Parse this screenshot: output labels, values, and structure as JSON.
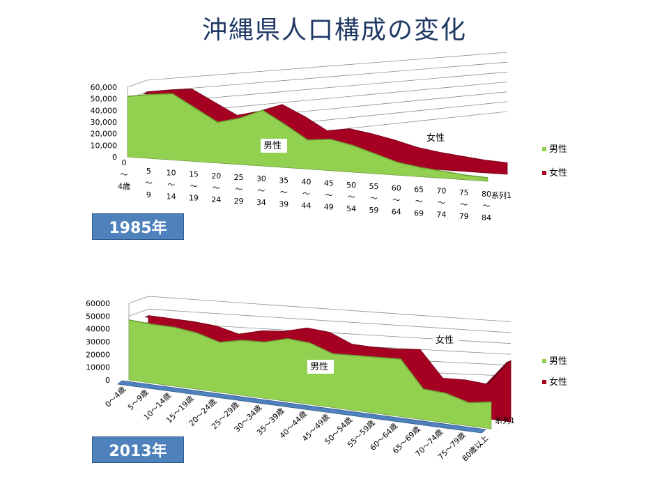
{
  "page": {
    "title": "沖縄県人口構成の変化"
  },
  "colors": {
    "male": "#92d050",
    "male_dark": "#6b9c34",
    "female": "#a50021",
    "female_dark": "#6e0015",
    "series1": "#4f81bd",
    "badge": "#4f81bd"
  },
  "chart_data": [
    {
      "type": "area",
      "year_label": "1985年",
      "ylim": [
        0,
        60000
      ],
      "yticks": [
        "0",
        "10,000",
        "20,000",
        "30,000",
        "40,000",
        "50,000",
        "60,000"
      ],
      "ytick_values": [
        0,
        10000,
        20000,
        30000,
        40000,
        50000,
        60000
      ],
      "categories": [
        [
          "0",
          "〜",
          "4歳"
        ],
        [
          "5",
          "〜",
          "9"
        ],
        [
          "10",
          "〜",
          "14"
        ],
        [
          "15",
          "〜",
          "19"
        ],
        [
          "20",
          "〜",
          "24"
        ],
        [
          "25",
          "〜",
          "29"
        ],
        [
          "30",
          "〜",
          "34"
        ],
        [
          "35",
          "〜",
          "39"
        ],
        [
          "40",
          "〜",
          "44"
        ],
        [
          "45",
          "〜",
          "49"
        ],
        [
          "50",
          "〜",
          "54"
        ],
        [
          "55",
          "〜",
          "59"
        ],
        [
          "60",
          "〜",
          "64"
        ],
        [
          "65",
          "〜",
          "69"
        ],
        [
          "70",
          "〜",
          "74"
        ],
        [
          "75",
          "〜",
          "79"
        ],
        [
          "80",
          "〜",
          "84"
        ]
      ],
      "series": [
        {
          "name": "男性",
          "values": [
            52000,
            55000,
            57000,
            46000,
            35000,
            40000,
            48000,
            37000,
            25000,
            27000,
            23000,
            17000,
            11000,
            8000,
            6000,
            4000,
            3000
          ]
        },
        {
          "name": "女性",
          "values": [
            50000,
            53000,
            55000,
            45000,
            35000,
            40000,
            47000,
            38000,
            27000,
            30000,
            27000,
            23000,
            18000,
            15000,
            13000,
            11000,
            10000
          ]
        },
        {
          "name": "系列1",
          "values": [
            0,
            0,
            0,
            0,
            0,
            0,
            0,
            0,
            0,
            0,
            0,
            0,
            0,
            0,
            0,
            0,
            0
          ]
        }
      ],
      "labels": {
        "male": "男性",
        "female": "女性",
        "series1": "系列1"
      },
      "legend": [
        "男性",
        "女性"
      ]
    },
    {
      "type": "area",
      "year_label": "2013年",
      "ylim": [
        0,
        60000
      ],
      "yticks": [
        "0",
        "10000",
        "20000",
        "30000",
        "40000",
        "50000",
        "60000"
      ],
      "ytick_values": [
        0,
        10000,
        20000,
        30000,
        40000,
        50000,
        60000
      ],
      "categories": [
        [
          "0〜4歳"
        ],
        [
          "5〜9歳"
        ],
        [
          "10〜14歳"
        ],
        [
          "15〜19歳"
        ],
        [
          "20〜24歳"
        ],
        [
          "25〜29歳"
        ],
        [
          "30〜34歳"
        ],
        [
          "35〜39歳"
        ],
        [
          "40〜44歳"
        ],
        [
          "45〜49歳"
        ],
        [
          "50〜54歳"
        ],
        [
          "55〜59歳"
        ],
        [
          "60〜64歳"
        ],
        [
          "65〜69歳"
        ],
        [
          "70〜74歳"
        ],
        [
          "75〜79歳"
        ],
        [
          "80歳以上"
        ]
      ],
      "series": [
        {
          "name": "男性",
          "values": [
            47000,
            46000,
            46000,
            44000,
            39000,
            43000,
            44000,
            49000,
            48000,
            42000,
            43000,
            44000,
            45000,
            24000,
            23000,
            18000,
            21000
          ]
        },
        {
          "name": "女性",
          "values": [
            45000,
            45000,
            45000,
            44000,
            40000,
            45000,
            47000,
            52000,
            51000,
            44000,
            44000,
            45000,
            47000,
            27000,
            28000,
            27000,
            48000
          ]
        },
        {
          "name": "系列1",
          "values": [
            0,
            0,
            0,
            0,
            0,
            0,
            0,
            0,
            0,
            0,
            0,
            0,
            0,
            0,
            0,
            0,
            0
          ]
        }
      ],
      "labels": {
        "male": "男性",
        "female": "女性",
        "series1": "系列1"
      },
      "legend": [
        "男性",
        "女性"
      ]
    }
  ]
}
